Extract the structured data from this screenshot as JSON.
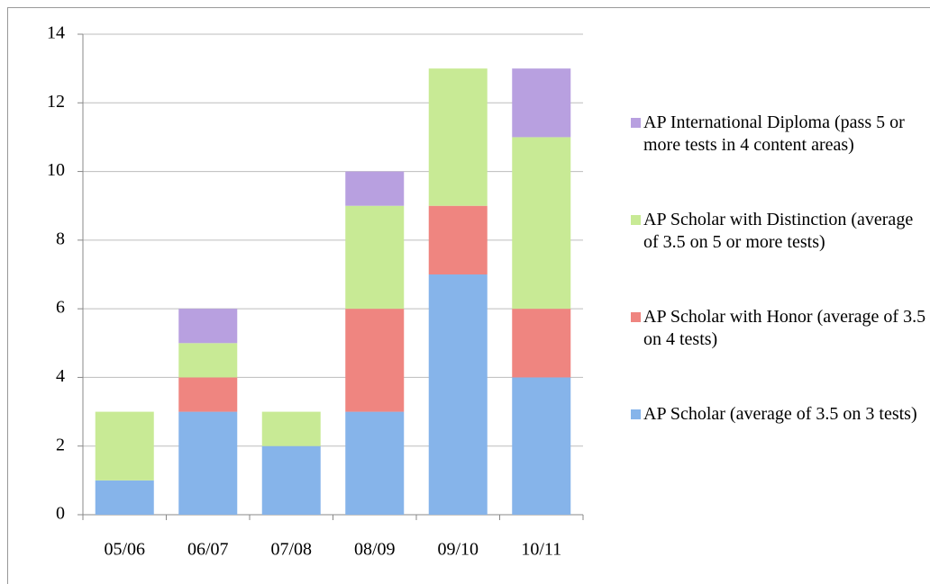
{
  "chart_data": {
    "type": "stacked-bar",
    "categories": [
      "05/06",
      "06/07",
      "07/08",
      "08/09",
      "09/10",
      "10/11"
    ],
    "series": [
      {
        "name": "AP Scholar (average of 3.5 on 3 tests)",
        "color": "#86b4ea",
        "values": [
          1,
          3,
          2,
          3,
          7,
          4
        ]
      },
      {
        "name": "AP Scholar with Honor (average of 3.5 on 4 tests)",
        "color": "#ef8580",
        "values": [
          0,
          1,
          0,
          3,
          2,
          2
        ]
      },
      {
        "name": "AP Scholar with Distinction (average of 3.5 on 5 or more tests)",
        "color": "#c8ea95",
        "values": [
          2,
          1,
          1,
          3,
          4,
          5
        ]
      },
      {
        "name": "AP International Diploma (pass 5 or more tests in 4 content areas)",
        "color": "#b8a0e0",
        "values": [
          0,
          1,
          0,
          1,
          0,
          2
        ]
      }
    ],
    "ylim": [
      0,
      14
    ],
    "yticks": [
      0,
      2,
      4,
      6,
      8,
      10,
      12,
      14
    ],
    "grid": true,
    "legend": "right"
  }
}
